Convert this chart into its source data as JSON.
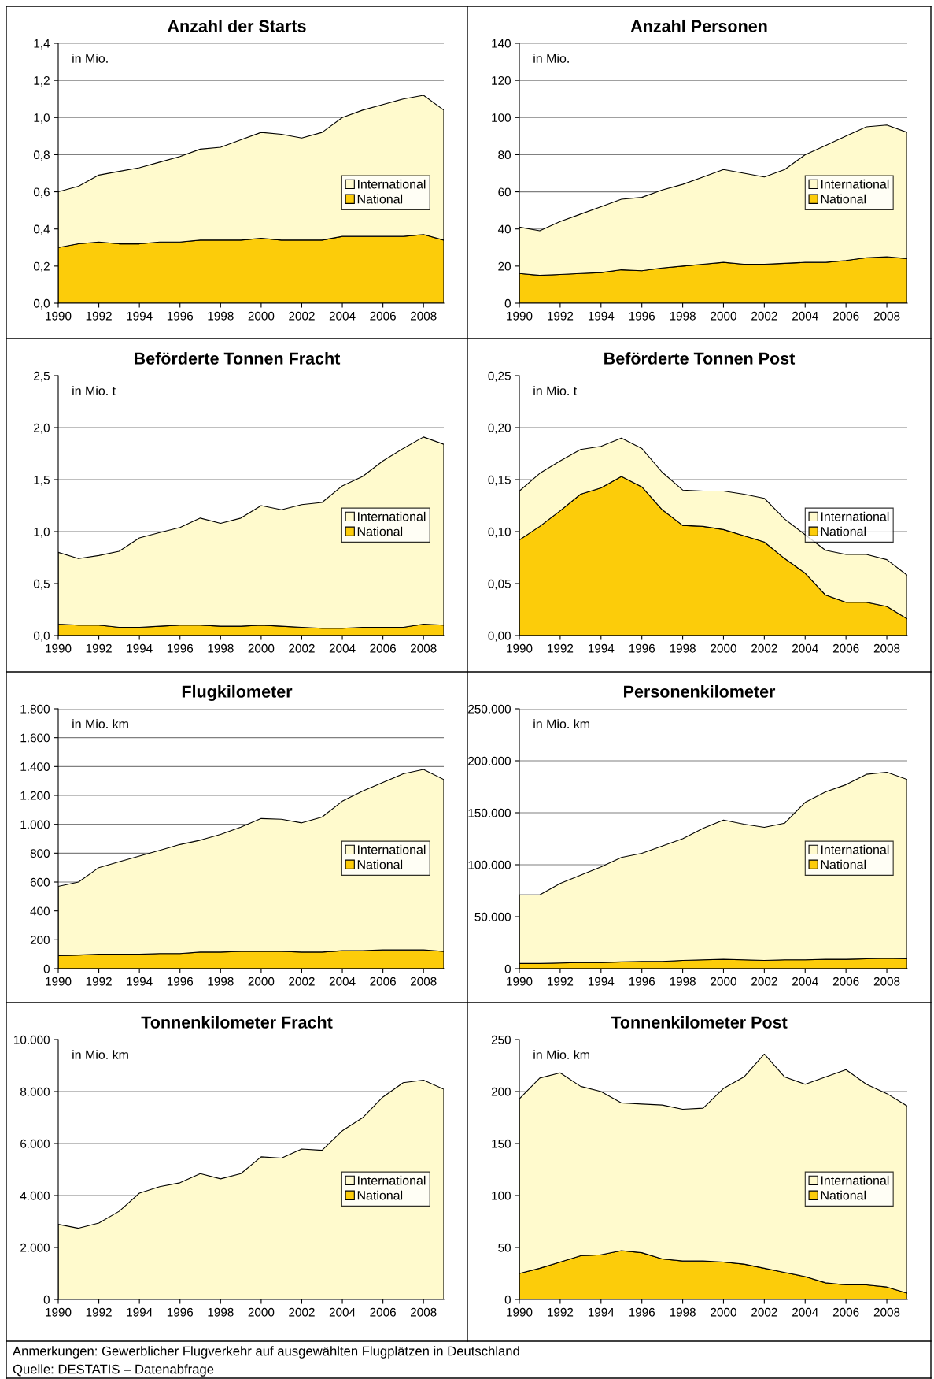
{
  "chart_data": [
    {
      "type": "area",
      "stacked": true,
      "title": "Anzahl der Starts",
      "annotations": [
        "in Mio."
      ],
      "x": [
        1990,
        1991,
        1992,
        1993,
        1994,
        1995,
        1996,
        1997,
        1998,
        1999,
        2000,
        2001,
        2002,
        2003,
        2004,
        2005,
        2006,
        2007,
        2008,
        2009
      ],
      "xlim": [
        1990,
        2009
      ],
      "xticks": [
        1990,
        1992,
        1994,
        1996,
        1998,
        2000,
        2002,
        2004,
        2006,
        2008
      ],
      "ylim": [
        0,
        1.4
      ],
      "yticks": [
        {
          "value": 0,
          "label": "0,0"
        },
        {
          "value": 0.2,
          "label": "0,2"
        },
        {
          "value": 0.4,
          "label": "0,4"
        },
        {
          "value": 0.6,
          "label": "0,6"
        },
        {
          "value": 0.8,
          "label": "0,8"
        },
        {
          "value": 1.0,
          "label": "1,0"
        },
        {
          "value": 1.2,
          "label": "1,2"
        },
        {
          "value": 1.4,
          "label": "1,4"
        }
      ],
      "grid": "y",
      "legend": "right",
      "series": [
        {
          "name": "National",
          "color": "#fccc0a",
          "values": [
            0.3,
            0.32,
            0.33,
            0.32,
            0.32,
            0.33,
            0.33,
            0.34,
            0.34,
            0.34,
            0.35,
            0.34,
            0.34,
            0.34,
            0.36,
            0.36,
            0.36,
            0.36,
            0.37,
            0.34
          ]
        },
        {
          "name": "International",
          "color": "#fffacd",
          "values": [
            0.3,
            0.31,
            0.36,
            0.39,
            0.41,
            0.43,
            0.46,
            0.49,
            0.5,
            0.54,
            0.57,
            0.57,
            0.55,
            0.58,
            0.64,
            0.68,
            0.71,
            0.74,
            0.75,
            0.7
          ]
        }
      ]
    },
    {
      "type": "area",
      "stacked": true,
      "title": "Anzahl Personen",
      "annotations": [
        "in Mio."
      ],
      "x": [
        1990,
        1991,
        1992,
        1993,
        1994,
        1995,
        1996,
        1997,
        1998,
        1999,
        2000,
        2001,
        2002,
        2003,
        2004,
        2005,
        2006,
        2007,
        2008,
        2009
      ],
      "xlim": [
        1990,
        2009
      ],
      "xticks": [
        1990,
        1992,
        1994,
        1996,
        1998,
        2000,
        2002,
        2004,
        2006,
        2008
      ],
      "ylim": [
        0,
        140
      ],
      "yticks": [
        0,
        20,
        40,
        60,
        80,
        100,
        120,
        140
      ],
      "grid": "y",
      "legend": "right",
      "series": [
        {
          "name": "National",
          "color": "#fccc0a",
          "values": [
            16,
            15,
            15.5,
            16,
            16.5,
            18,
            17.5,
            19,
            20,
            21,
            22,
            21,
            21,
            21.5,
            22,
            22,
            23,
            24.5,
            25,
            24
          ]
        },
        {
          "name": "International",
          "color": "#fffacd",
          "values": [
            25,
            24,
            28.5,
            32,
            35.5,
            38,
            39.5,
            42,
            44,
            47,
            50,
            49,
            47,
            50.5,
            58,
            63,
            67,
            70.5,
            71,
            68
          ]
        }
      ]
    },
    {
      "type": "area",
      "stacked": true,
      "title": "Beförderte Tonnen Fracht",
      "annotations": [
        "in Mio. t"
      ],
      "x": [
        1990,
        1991,
        1992,
        1993,
        1994,
        1995,
        1996,
        1997,
        1998,
        1999,
        2000,
        2001,
        2002,
        2003,
        2004,
        2005,
        2006,
        2007,
        2008,
        2009
      ],
      "xlim": [
        1990,
        2009
      ],
      "xticks": [
        1990,
        1992,
        1994,
        1996,
        1998,
        2000,
        2002,
        2004,
        2006,
        2008
      ],
      "ylim": [
        0,
        2.5
      ],
      "yticks": [
        {
          "value": 0,
          "label": "0,0"
        },
        {
          "value": 0.5,
          "label": "0,5"
        },
        {
          "value": 1.0,
          "label": "1,0"
        },
        {
          "value": 1.5,
          "label": "1,5"
        },
        {
          "value": 2.0,
          "label": "2,0"
        },
        {
          "value": 2.5,
          "label": "2,5"
        }
      ],
      "grid": "y",
      "legend": "right",
      "series": [
        {
          "name": "National",
          "color": "#fccc0a",
          "values": [
            0.11,
            0.1,
            0.1,
            0.08,
            0.08,
            0.09,
            0.1,
            0.1,
            0.09,
            0.09,
            0.1,
            0.09,
            0.08,
            0.07,
            0.07,
            0.08,
            0.08,
            0.08,
            0.11,
            0.1
          ]
        },
        {
          "name": "International",
          "color": "#fffacd",
          "values": [
            0.69,
            0.64,
            0.67,
            0.73,
            0.86,
            0.9,
            0.94,
            1.03,
            0.99,
            1.04,
            1.15,
            1.12,
            1.18,
            1.21,
            1.37,
            1.45,
            1.6,
            1.72,
            1.8,
            1.74
          ]
        }
      ]
    },
    {
      "type": "area",
      "stacked": true,
      "title": "Beförderte Tonnen Post",
      "annotations": [
        "in Mio. t"
      ],
      "x": [
        1990,
        1991,
        1992,
        1993,
        1994,
        1995,
        1996,
        1997,
        1998,
        1999,
        2000,
        2001,
        2002,
        2003,
        2004,
        2005,
        2006,
        2007,
        2008,
        2009
      ],
      "xlim": [
        1990,
        2009
      ],
      "xticks": [
        1990,
        1992,
        1994,
        1996,
        1998,
        2000,
        2002,
        2004,
        2006,
        2008
      ],
      "ylim": [
        0,
        0.25
      ],
      "yticks": [
        {
          "value": 0,
          "label": "0,00"
        },
        {
          "value": 0.05,
          "label": "0,05"
        },
        {
          "value": 0.1,
          "label": "0,10"
        },
        {
          "value": 0.15,
          "label": "0,15"
        },
        {
          "value": 0.2,
          "label": "0,20"
        },
        {
          "value": 0.25,
          "label": "0,25"
        }
      ],
      "grid": "y",
      "legend": "right",
      "series": [
        {
          "name": "National",
          "color": "#fccc0a",
          "values": [
            0.092,
            0.105,
            0.12,
            0.136,
            0.142,
            0.153,
            0.143,
            0.121,
            0.106,
            0.105,
            0.102,
            0.096,
            0.09,
            0.074,
            0.06,
            0.039,
            0.032,
            0.032,
            0.028,
            0.016
          ]
        },
        {
          "name": "International",
          "color": "#fffacd",
          "values": [
            0.047,
            0.051,
            0.048,
            0.043,
            0.04,
            0.037,
            0.037,
            0.036,
            0.034,
            0.034,
            0.037,
            0.04,
            0.042,
            0.038,
            0.037,
            0.043,
            0.046,
            0.046,
            0.045,
            0.042
          ]
        }
      ]
    },
    {
      "type": "area",
      "stacked": true,
      "title": "Flugkilometer",
      "annotations": [
        "in Mio. km"
      ],
      "x": [
        1990,
        1991,
        1992,
        1993,
        1994,
        1995,
        1996,
        1997,
        1998,
        1999,
        2000,
        2001,
        2002,
        2003,
        2004,
        2005,
        2006,
        2007,
        2008,
        2009
      ],
      "xlim": [
        1990,
        2009
      ],
      "xticks": [
        1990,
        1992,
        1994,
        1996,
        1998,
        2000,
        2002,
        2004,
        2006,
        2008
      ],
      "ylim": [
        0,
        1800
      ],
      "yticks": [
        0,
        200,
        400,
        600,
        800,
        {
          "value": 1000,
          "label": "1.000"
        },
        {
          "value": 1200,
          "label": "1.200"
        },
        {
          "value": 1400,
          "label": "1.400"
        },
        {
          "value": 1600,
          "label": "1.600"
        },
        {
          "value": 1800,
          "label": "1.800"
        }
      ],
      "grid": "y",
      "legend": "right",
      "series": [
        {
          "name": "National",
          "color": "#fccc0a",
          "values": [
            90,
            95,
            100,
            100,
            100,
            105,
            105,
            115,
            115,
            120,
            120,
            120,
            115,
            115,
            125,
            125,
            130,
            130,
            130,
            120
          ]
        },
        {
          "name": "International",
          "color": "#fffacd",
          "values": [
            480,
            505,
            600,
            640,
            680,
            715,
            755,
            775,
            815,
            860,
            920,
            915,
            895,
            935,
            1035,
            1105,
            1160,
            1220,
            1250,
            1190
          ]
        }
      ]
    },
    {
      "type": "area",
      "stacked": true,
      "title": "Personenkilometer",
      "annotations": [
        "in Mio. km"
      ],
      "x": [
        1990,
        1991,
        1992,
        1993,
        1994,
        1995,
        1996,
        1997,
        1998,
        1999,
        2000,
        2001,
        2002,
        2003,
        2004,
        2005,
        2006,
        2007,
        2008,
        2009
      ],
      "xlim": [
        1990,
        2009
      ],
      "xticks": [
        1990,
        1992,
        1994,
        1996,
        1998,
        2000,
        2002,
        2004,
        2006,
        2008
      ],
      "ylim": [
        0,
        250000
      ],
      "yticks": [
        0,
        {
          "value": 50000,
          "label": "50.000"
        },
        {
          "value": 100000,
          "label": "100.000"
        },
        {
          "value": 150000,
          "label": "150.000"
        },
        {
          "value": 200000,
          "label": "200.000"
        },
        {
          "value": 250000,
          "label": "250.000"
        }
      ],
      "grid": "y",
      "legend": "right",
      "series": [
        {
          "name": "National",
          "color": "#fccc0a",
          "values": [
            5000,
            5000,
            5500,
            6000,
            6000,
            6500,
            7000,
            7000,
            8000,
            8500,
            9000,
            8500,
            8000,
            8500,
            8500,
            9000,
            9000,
            9500,
            10000,
            9500
          ]
        },
        {
          "name": "International",
          "color": "#fffacd",
          "values": [
            66000,
            66000,
            76500,
            84000,
            92000,
            100500,
            104000,
            111000,
            117000,
            126500,
            134000,
            130500,
            128000,
            131500,
            151500,
            161000,
            168000,
            177500,
            179000,
            172500
          ]
        }
      ]
    },
    {
      "type": "area",
      "stacked": true,
      "title": "Tonnenkilometer Fracht",
      "annotations": [
        "in Mio. km"
      ],
      "x": [
        1990,
        1991,
        1992,
        1993,
        1994,
        1995,
        1996,
        1997,
        1998,
        1999,
        2000,
        2001,
        2002,
        2003,
        2004,
        2005,
        2006,
        2007,
        2008,
        2009
      ],
      "xlim": [
        1990,
        2009
      ],
      "xticks": [
        1990,
        1992,
        1994,
        1996,
        1998,
        2000,
        2002,
        2004,
        2006,
        2008
      ],
      "ylim": [
        0,
        10000
      ],
      "yticks": [
        0,
        {
          "value": 2000,
          "label": "2.000"
        },
        {
          "value": 4000,
          "label": "4.000"
        },
        {
          "value": 6000,
          "label": "6.000"
        },
        {
          "value": 8000,
          "label": "8.000"
        },
        {
          "value": 10000,
          "label": "10.000"
        }
      ],
      "grid": "y",
      "legend": "right",
      "series": [
        {
          "name": "National",
          "color": "#fccc0a",
          "values": [
            null,
            null,
            null,
            null,
            null,
            null,
            null,
            null,
            null,
            null,
            null,
            null,
            null,
            null,
            null,
            null,
            null,
            null,
            null,
            null
          ]
        },
        {
          "name": "International",
          "color": "#fffacd",
          "values": [
            2890,
            2740,
            2940,
            3390,
            4090,
            4340,
            4490,
            4840,
            4640,
            4840,
            5490,
            5440,
            5790,
            5740,
            6490,
            6990,
            7790,
            8340,
            8440,
            8090
          ]
        }
      ]
    },
    {
      "type": "area",
      "stacked": true,
      "title": "Tonnenkilometer Post",
      "annotations": [
        "in Mio. km",
        "Anmerkungen: Gewerblicher Flugverkehr auf ausgewählten Flugplätzen in Deutschland",
        "Quelle: DESTATIS – Datenabfrage"
      ],
      "x": [
        1990,
        1991,
        1992,
        1993,
        1994,
        1995,
        1996,
        1997,
        1998,
        1999,
        2000,
        2001,
        2002,
        2003,
        2004,
        2005,
        2006,
        2007,
        2008,
        2009
      ],
      "xlim": [
        1990,
        2009
      ],
      "xticks": [
        1990,
        1992,
        1994,
        1996,
        1998,
        2000,
        2002,
        2004,
        2006,
        2008
      ],
      "ylim": [
        0,
        250
      ],
      "yticks": [
        0,
        50,
        100,
        150,
        200,
        250
      ],
      "grid": "y",
      "legend": "right",
      "series": [
        {
          "name": "National",
          "color": "#fccc0a",
          "values": [
            25,
            30,
            36,
            42,
            43,
            47,
            45,
            39,
            37,
            37,
            36,
            34,
            30,
            26,
            22,
            16,
            14,
            14,
            12,
            6
          ]
        },
        {
          "name": "International",
          "color": "#fffacd",
          "values": [
            168,
            183,
            182,
            163,
            157,
            142,
            143,
            148,
            146,
            147,
            167,
            180,
            206,
            188,
            185,
            198,
            207,
            193,
            186,
            180
          ]
        }
      ]
    }
  ]
}
